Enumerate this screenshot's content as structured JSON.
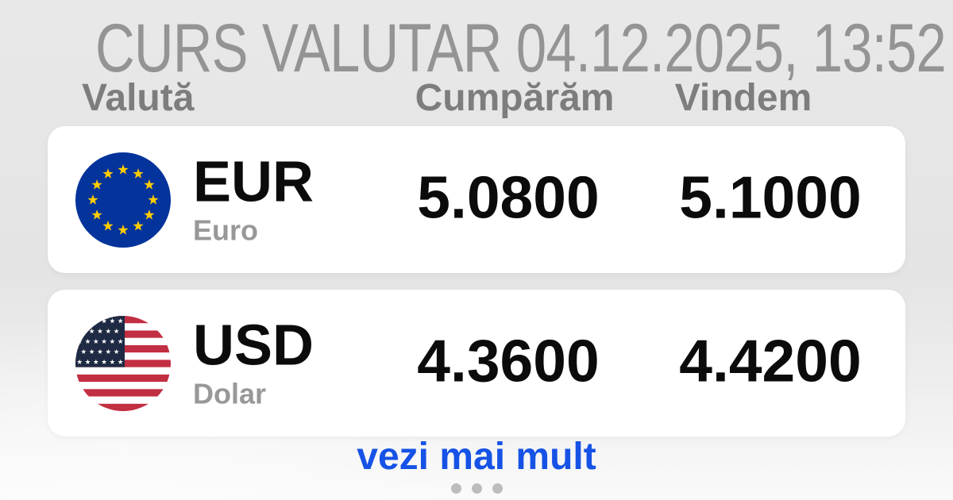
{
  "title": "CURS VALUTAR 04.12.2025, 13:52",
  "columns": {
    "currency": "Valută",
    "buy": "Cumpărăm",
    "sell": "Vindem"
  },
  "rows": [
    {
      "code": "EUR",
      "name": "Euro",
      "buy": "5.0800",
      "sell": "5.1000",
      "flag": "eu-flag-icon"
    },
    {
      "code": "USD",
      "name": "Dolar",
      "buy": "4.3600",
      "sell": "4.4200",
      "flag": "us-flag-icon"
    }
  ],
  "footer": {
    "see_more": "vezi mai mult",
    "pagination_dots": 3
  },
  "colors": {
    "accent_blue": "#1652E6",
    "card_bg": "#FFFFFF",
    "text_black": "#0B0B0B",
    "title_gray": "#949494",
    "header_gray": "#7D7D7D",
    "dot_gray": "#BDBDBD",
    "eu_blue": "#04339B",
    "eu_star_yellow": "#FFCC00",
    "us_red": "#C22E42",
    "us_navy": "#1F2A44"
  }
}
